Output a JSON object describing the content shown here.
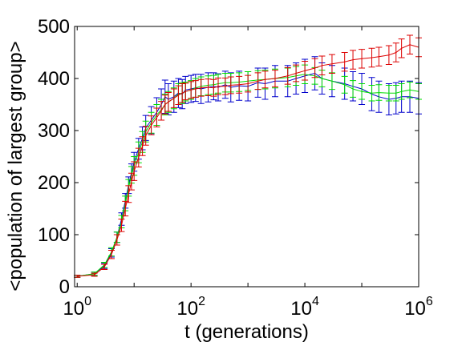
{
  "chart_data": {
    "type": "line",
    "xlabel": "t (generations)",
    "ylabel": "<population of largest group>",
    "x_scale": "log",
    "xlim": [
      0.9,
      1000000
    ],
    "ylim": [
      0,
      500
    ],
    "x_ticks": [
      {
        "base": "10",
        "exp": "0",
        "value": 1
      },
      {
        "base": "10",
        "exp": "2",
        "value": 100
      },
      {
        "base": "10",
        "exp": "4",
        "value": 10000
      },
      {
        "base": "10",
        "exp": "6",
        "value": 1000000
      }
    ],
    "y_ticks": [
      "0",
      "100",
      "200",
      "300",
      "400",
      "500"
    ],
    "grid": false,
    "legend": "none",
    "series": [
      {
        "color": "#0000cc",
        "points": [
          [
            1,
            20,
            2
          ],
          [
            2,
            25,
            3
          ],
          [
            3,
            40,
            5
          ],
          [
            4,
            65,
            8
          ],
          [
            5,
            95,
            10
          ],
          [
            6,
            130,
            12
          ],
          [
            7,
            165,
            14
          ],
          [
            8,
            195,
            16
          ],
          [
            9,
            220,
            16
          ],
          [
            10,
            240,
            18
          ],
          [
            12,
            265,
            20
          ],
          [
            14,
            285,
            22
          ],
          [
            16,
            305,
            24
          ],
          [
            20,
            320,
            26
          ],
          [
            25,
            335,
            28
          ],
          [
            30,
            350,
            30
          ],
          [
            35,
            365,
            32
          ],
          [
            40,
            360,
            30
          ],
          [
            50,
            365,
            30
          ],
          [
            60,
            372,
            28
          ],
          [
            70,
            370,
            28
          ],
          [
            80,
            378,
            26
          ],
          [
            100,
            380,
            26
          ],
          [
            120,
            382,
            26
          ],
          [
            150,
            380,
            28
          ],
          [
            200,
            383,
            28
          ],
          [
            250,
            385,
            26
          ],
          [
            300,
            383,
            26
          ],
          [
            400,
            388,
            26
          ],
          [
            500,
            383,
            28
          ],
          [
            700,
            386,
            28
          ],
          [
            1000,
            385,
            28
          ],
          [
            1500,
            392,
            28
          ],
          [
            2000,
            390,
            30
          ],
          [
            3000,
            395,
            30
          ],
          [
            5000,
            395,
            30
          ],
          [
            7000,
            400,
            30
          ],
          [
            10000,
            405,
            32
          ],
          [
            15000,
            410,
            32
          ],
          [
            20000,
            400,
            30
          ],
          [
            30000,
            395,
            30
          ],
          [
            50000,
            390,
            30
          ],
          [
            70000,
            385,
            28
          ],
          [
            100000,
            380,
            30
          ],
          [
            150000,
            370,
            32
          ],
          [
            200000,
            365,
            30
          ],
          [
            300000,
            360,
            30
          ],
          [
            400000,
            362,
            30
          ],
          [
            500000,
            365,
            30
          ],
          [
            700000,
            365,
            30
          ],
          [
            1000000,
            362,
            30
          ]
        ]
      },
      {
        "color": "#00dd00",
        "points": [
          [
            1,
            20,
            2
          ],
          [
            2,
            25,
            3
          ],
          [
            3,
            42,
            5
          ],
          [
            4,
            67,
            8
          ],
          [
            5,
            95,
            10
          ],
          [
            6,
            125,
            12
          ],
          [
            7,
            160,
            14
          ],
          [
            8,
            190,
            16
          ],
          [
            9,
            215,
            16
          ],
          [
            10,
            232,
            18
          ],
          [
            12,
            258,
            20
          ],
          [
            14,
            278,
            20
          ],
          [
            16,
            298,
            20
          ],
          [
            20,
            315,
            20
          ],
          [
            25,
            330,
            20
          ],
          [
            30,
            340,
            20
          ],
          [
            35,
            350,
            20
          ],
          [
            40,
            355,
            20
          ],
          [
            50,
            362,
            20
          ],
          [
            60,
            370,
            20
          ],
          [
            70,
            372,
            20
          ],
          [
            80,
            375,
            18
          ],
          [
            100,
            378,
            18
          ],
          [
            120,
            382,
            18
          ],
          [
            150,
            385,
            18
          ],
          [
            200,
            387,
            18
          ],
          [
            250,
            388,
            18
          ],
          [
            300,
            390,
            18
          ],
          [
            400,
            392,
            18
          ],
          [
            500,
            392,
            18
          ],
          [
            700,
            393,
            18
          ],
          [
            1000,
            395,
            18
          ],
          [
            1500,
            397,
            18
          ],
          [
            2000,
            398,
            18
          ],
          [
            3000,
            400,
            18
          ],
          [
            5000,
            402,
            18
          ],
          [
            7000,
            405,
            18
          ],
          [
            10000,
            408,
            18
          ],
          [
            15000,
            405,
            16
          ],
          [
            20000,
            400,
            16
          ],
          [
            30000,
            395,
            16
          ],
          [
            50000,
            388,
            16
          ],
          [
            70000,
            380,
            16
          ],
          [
            100000,
            375,
            15
          ],
          [
            150000,
            372,
            15
          ],
          [
            200000,
            373,
            15
          ],
          [
            300000,
            372,
            15
          ],
          [
            400000,
            372,
            15
          ],
          [
            500000,
            375,
            15
          ],
          [
            700000,
            378,
            15
          ],
          [
            1000000,
            375,
            15
          ]
        ]
      },
      {
        "color": "#dd0000",
        "points": [
          [
            1,
            20,
            2
          ],
          [
            2,
            23,
            3
          ],
          [
            3,
            38,
            5
          ],
          [
            4,
            62,
            8
          ],
          [
            5,
            90,
            10
          ],
          [
            6,
            118,
            12
          ],
          [
            7,
            150,
            14
          ],
          [
            8,
            178,
            16
          ],
          [
            9,
            202,
            16
          ],
          [
            10,
            222,
            18
          ],
          [
            12,
            248,
            18
          ],
          [
            14,
            270,
            18
          ],
          [
            16,
            290,
            18
          ],
          [
            20,
            310,
            18
          ],
          [
            25,
            325,
            18
          ],
          [
            30,
            338,
            18
          ],
          [
            35,
            350,
            18
          ],
          [
            40,
            355,
            18
          ],
          [
            50,
            362,
            18
          ],
          [
            60,
            368,
            18
          ],
          [
            70,
            372,
            18
          ],
          [
            80,
            375,
            16
          ],
          [
            100,
            378,
            16
          ],
          [
            120,
            380,
            16
          ],
          [
            150,
            382,
            16
          ],
          [
            200,
            383,
            16
          ],
          [
            250,
            382,
            16
          ],
          [
            300,
            385,
            16
          ],
          [
            400,
            385,
            16
          ],
          [
            500,
            387,
            16
          ],
          [
            700,
            388,
            16
          ],
          [
            1000,
            390,
            16
          ],
          [
            1500,
            395,
            16
          ],
          [
            2000,
            398,
            16
          ],
          [
            3000,
            400,
            16
          ],
          [
            5000,
            405,
            16
          ],
          [
            7000,
            410,
            16
          ],
          [
            10000,
            415,
            18
          ],
          [
            15000,
            420,
            18
          ],
          [
            20000,
            425,
            18
          ],
          [
            30000,
            428,
            18
          ],
          [
            50000,
            432,
            18
          ],
          [
            70000,
            436,
            18
          ],
          [
            100000,
            438,
            18
          ],
          [
            150000,
            440,
            18
          ],
          [
            200000,
            442,
            18
          ],
          [
            300000,
            445,
            18
          ],
          [
            400000,
            450,
            18
          ],
          [
            500000,
            458,
            18
          ],
          [
            700000,
            465,
            18
          ],
          [
            1000000,
            460,
            18
          ]
        ]
      }
    ]
  }
}
